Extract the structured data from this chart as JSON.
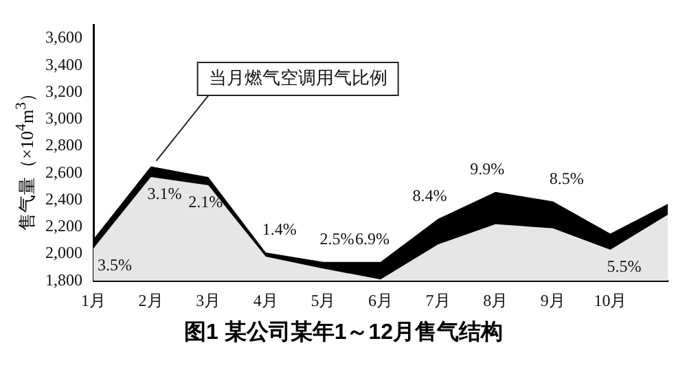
{
  "chart_data": {
    "type": "area",
    "title": "图1 某公司某年1～12月售气结构",
    "ylabel": "售气量（×10$^{4}$m$^{3}$）",
    "categories": [
      "1月",
      "2月",
      "3月",
      "4月",
      "5月",
      "6月",
      "7月",
      "8月",
      "9月",
      "10月",
      null
    ],
    "series": [
      {
        "color": "#e6e6e6",
        "values": [
          2040,
          2570,
          2510,
          1980,
          1890,
          1810,
          2070,
          2220,
          2190,
          2030,
          2290
        ]
      },
      {
        "color": "#000000",
        "values": [
          2110,
          2650,
          2570,
          2010,
          1940,
          1940,
          2260,
          2460,
          2390,
          2150,
          2370
        ]
      }
    ],
    "ylim": [
      1800,
      3700
    ],
    "yticks": [
      {
        "value": 1800,
        "label": "1,800"
      },
      {
        "value": 2000,
        "label": "2,000"
      },
      {
        "value": 2200,
        "label": "2,200"
      },
      {
        "value": 2400,
        "label": "2,400"
      },
      {
        "value": 2600,
        "label": "2,600"
      },
      {
        "value": 2800,
        "label": "2,800"
      },
      {
        "value": 3000,
        "label": "3,000"
      },
      {
        "value": 3200,
        "label": "3,200"
      },
      {
        "value": 3400,
        "label": "3,400"
      },
      {
        "value": 3600,
        "label": "3,600"
      }
    ],
    "grid": false,
    "legend": false,
    "annotations": [
      {
        "text": "当月燃气空调用气比例",
        "x": "2月",
        "y": 2650
      },
      {
        "text": "3.5%",
        "x": "1月",
        "y": 2110
      },
      {
        "text": "3.1%",
        "x": "2月",
        "y": 2650
      },
      {
        "text": "2.1%",
        "x": "3月",
        "y": 2570
      },
      {
        "text": "1.4%",
        "x": "4月",
        "y": 2010
      },
      {
        "text": "2.5%",
        "x": "5月",
        "y": 1940
      },
      {
        "text": "6.9%",
        "x": "6月",
        "y": 1940
      },
      {
        "text": "8.4%",
        "x": "7月",
        "y": 2260
      },
      {
        "text": "9.9%",
        "x": "8月",
        "y": 2460
      },
      {
        "text": "8.5%",
        "x": "9月",
        "y": 2390
      },
      {
        "text": "5.5%",
        "x": "10月",
        "y": 2150
      }
    ]
  }
}
